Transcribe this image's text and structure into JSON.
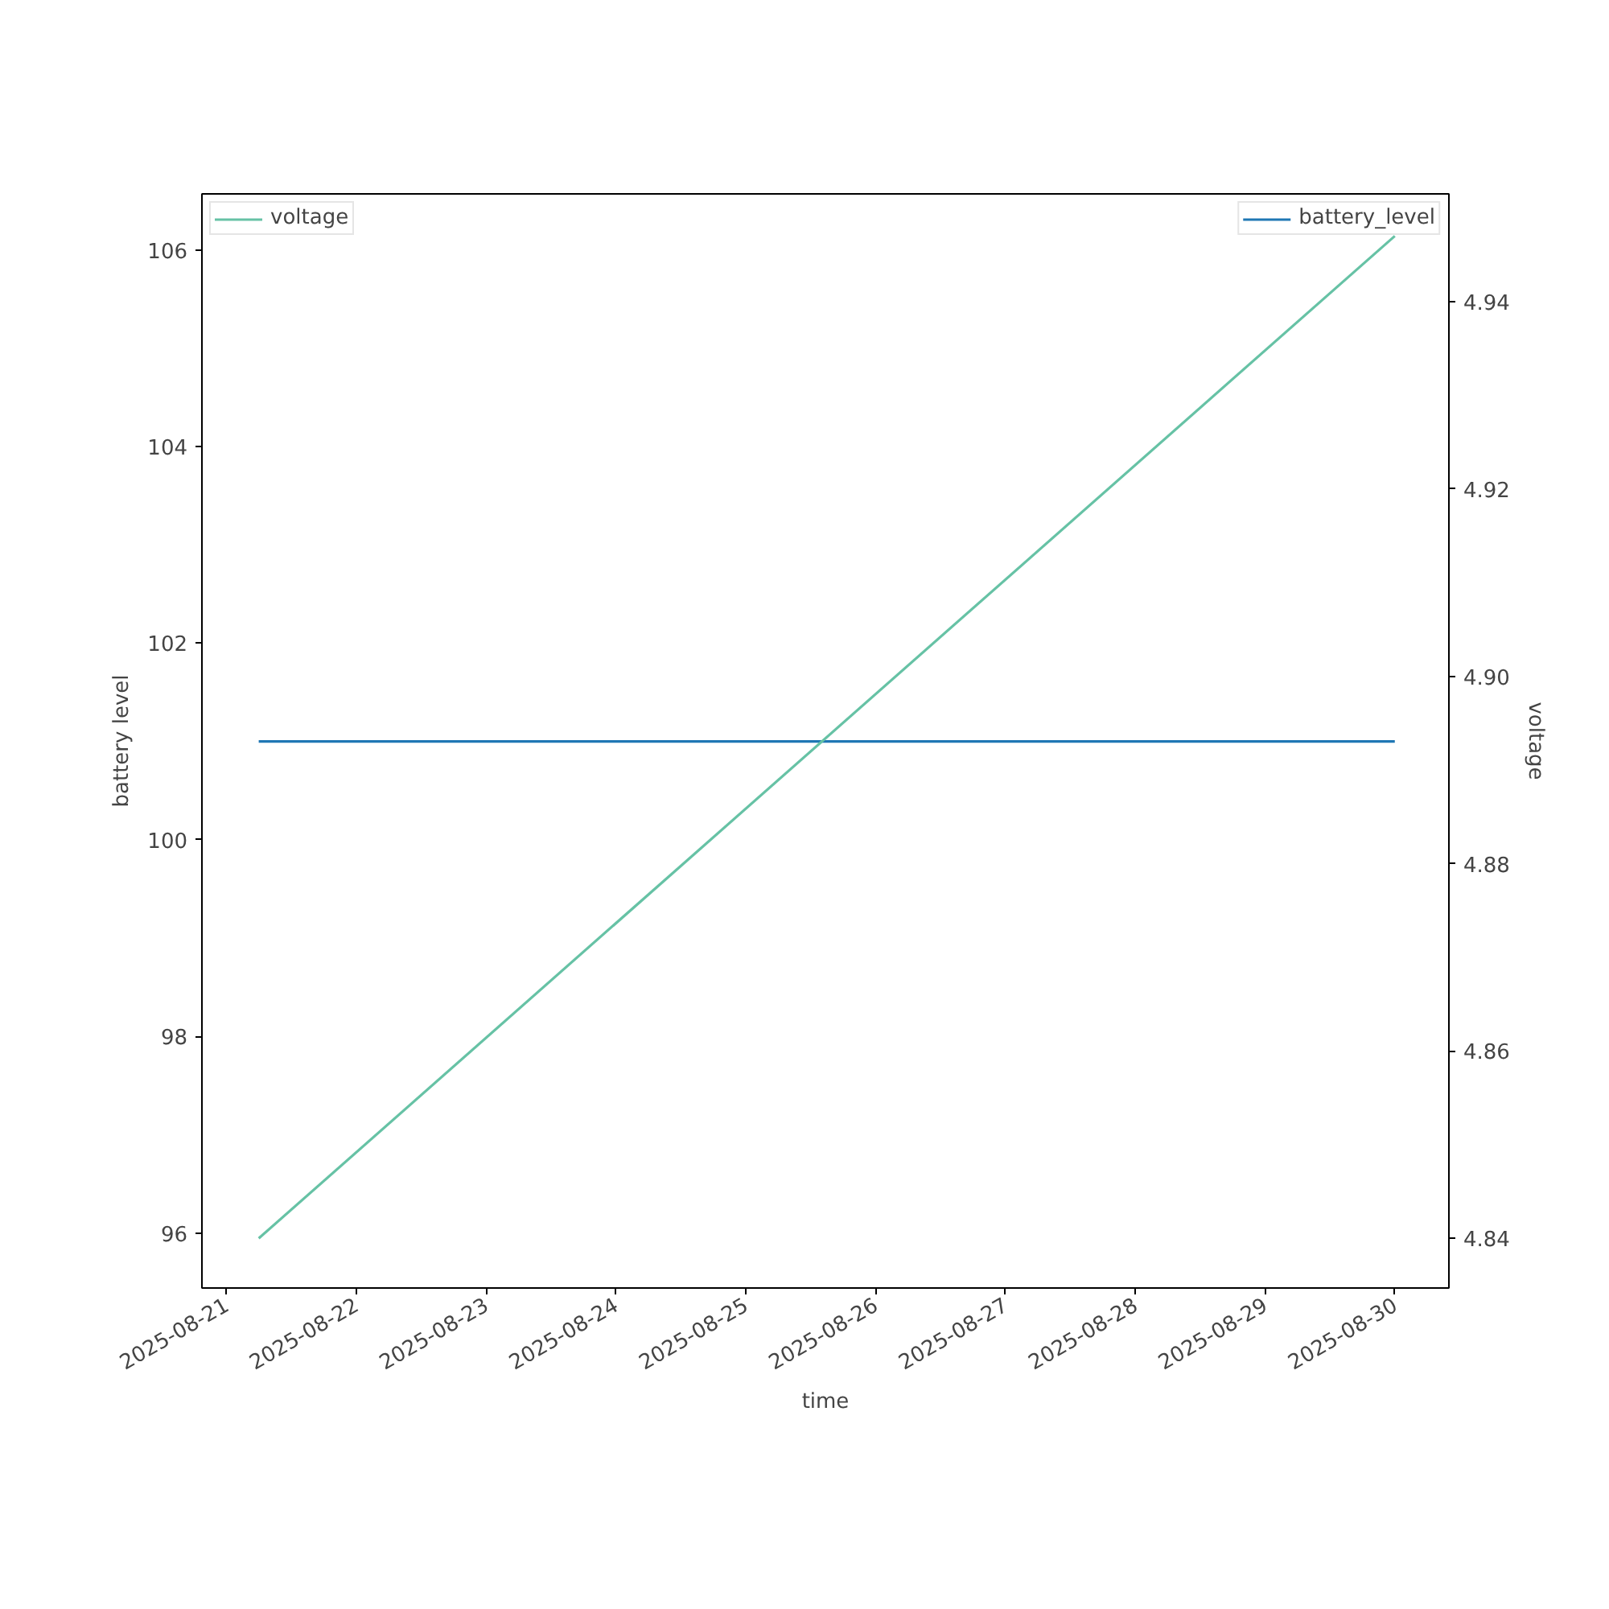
{
  "chart_data": {
    "type": "line",
    "xlabel": "time",
    "ylabel": "battery level",
    "y2label": "voltage",
    "xlim": [
      "2025-08-20T19:30",
      "2025-08-30T10:00"
    ],
    "xticks": [
      "2025-08-21",
      "2025-08-22",
      "2025-08-23",
      "2025-08-24",
      "2025-08-25",
      "2025-08-26",
      "2025-08-27",
      "2025-08-28",
      "2025-08-29",
      "2025-08-30"
    ],
    "ylim": [
      95.44,
      106.57
    ],
    "yticks": [
      96,
      98,
      100,
      102,
      104,
      106
    ],
    "y2lim": [
      4.8347,
      4.9515
    ],
    "y2ticks": [
      4.84,
      4.86,
      4.88,
      {
        "value": 4.9,
        "label": "4.90"
      },
      4.92,
      4.94
    ],
    "grid": false,
    "legend": "top right",
    "series": [
      {
        "name": "battery_level",
        "color": "#1f77b4",
        "x": [
          "2025-08-21T06:00",
          "2025-08-30T00:00"
        ],
        "values": [
          101,
          101
        ]
      },
      {
        "name": "voltage",
        "color": "#66c2a5",
        "axis": "y2",
        "x": [
          "2025-08-21T06:00",
          "2025-08-30T00:00"
        ],
        "values": [
          4.84,
          4.947
        ]
      }
    ]
  }
}
